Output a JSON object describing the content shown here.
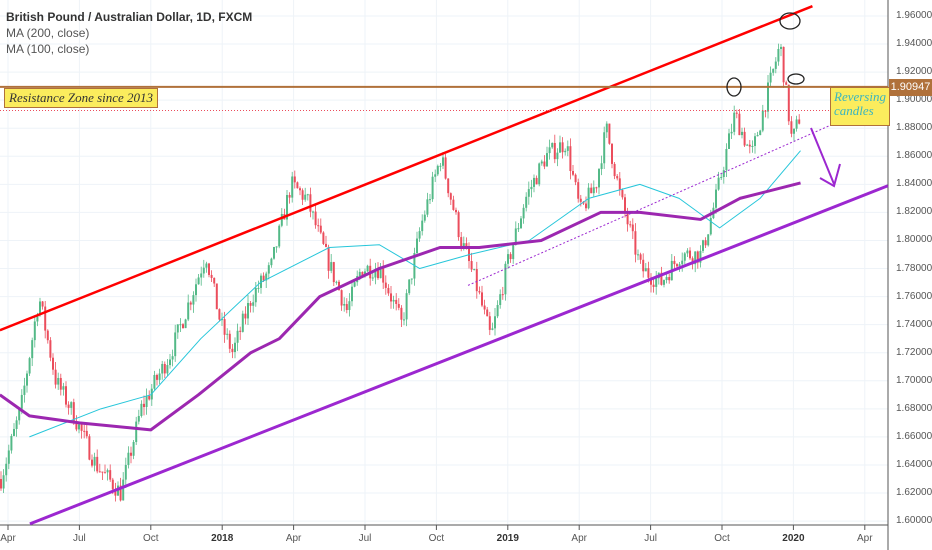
{
  "chart_data": {
    "type": "candlestick",
    "title": "British Pound / Australian Dollar, 1D, FXCM",
    "indicators": [
      "MA (200, close)",
      "MA (100, close)"
    ],
    "ylim": [
      1.6,
      1.96
    ],
    "yticks": [
      "1.96000",
      "1.94000",
      "1.92000",
      "1.90000",
      "1.88000",
      "1.86000",
      "1.84000",
      "1.82000",
      "1.80000",
      "1.78000",
      "1.76000",
      "1.74000",
      "1.72000",
      "1.70000",
      "1.68000",
      "1.66000",
      "1.64000",
      "1.62000",
      "1.60000"
    ],
    "xticks": [
      {
        "label": "Apr",
        "m": 0
      },
      {
        "label": "Jul",
        "m": 3
      },
      {
        "label": "Oct",
        "m": 6
      },
      {
        "label": "2018",
        "m": 9,
        "bold": true
      },
      {
        "label": "Apr",
        "m": 12
      },
      {
        "label": "Jul",
        "m": 15
      },
      {
        "label": "Oct",
        "m": 18
      },
      {
        "label": "2019",
        "m": 21,
        "bold": true
      },
      {
        "label": "Apr",
        "m": 24
      },
      {
        "label": "Jul",
        "m": 27
      },
      {
        "label": "Oct",
        "m": 30
      },
      {
        "label": "2020",
        "m": 33,
        "bold": true
      },
      {
        "label": "Apr",
        "m": 36
      }
    ],
    "price_path_months_from_apr2017": [
      [
        -0.34,
        1.63
      ],
      [
        0.5,
        1.68
      ],
      [
        1.26,
        1.76
      ],
      [
        1.97,
        1.7
      ],
      [
        2.6,
        1.68
      ],
      [
        3.66,
        1.64
      ],
      [
        4.7,
        1.62
      ],
      [
        5.55,
        1.68
      ],
      [
        6.8,
        1.72
      ],
      [
        7.65,
        1.76
      ],
      [
        8.28,
        1.79
      ],
      [
        8.9,
        1.74
      ],
      [
        9.4,
        1.72
      ],
      [
        10.2,
        1.76
      ],
      [
        11,
        1.78
      ],
      [
        11.85,
        1.84
      ],
      [
        12.5,
        1.83
      ],
      [
        13.3,
        1.79
      ],
      [
        14.2,
        1.75
      ],
      [
        14.8,
        1.78
      ],
      [
        15.6,
        1.78
      ],
      [
        16.5,
        1.74
      ],
      [
        17.3,
        1.81
      ],
      [
        18.15,
        1.86
      ],
      [
        19,
        1.8
      ],
      [
        19.6,
        1.77
      ],
      [
        20.25,
        1.73
      ],
      [
        20.9,
        1.78
      ],
      [
        21.7,
        1.83
      ],
      [
        22.56,
        1.86
      ],
      [
        23.4,
        1.87
      ],
      [
        24,
        1.82
      ],
      [
        24.66,
        1.84
      ],
      [
        25.1,
        1.88
      ],
      [
        25.7,
        1.83
      ],
      [
        26.55,
        1.78
      ],
      [
        27.4,
        1.77
      ],
      [
        28.2,
        1.79
      ],
      [
        29.1,
        1.79
      ],
      [
        29.7,
        1.83
      ],
      [
        30.5,
        1.89
      ],
      [
        31.2,
        1.86
      ],
      [
        31.8,
        1.9
      ],
      [
        32.4,
        1.94
      ],
      [
        32.9,
        1.87
      ],
      [
        33.3,
        1.893
      ]
    ],
    "ma200": [
      [
        -0.34,
        1.69
      ],
      [
        0.9,
        1.675
      ],
      [
        3,
        1.67
      ],
      [
        6,
        1.665
      ],
      [
        8,
        1.69
      ],
      [
        10.2,
        1.72
      ],
      [
        11.4,
        1.73
      ],
      [
        13.1,
        1.76
      ],
      [
        15.6,
        1.78
      ],
      [
        18.15,
        1.795
      ],
      [
        19.8,
        1.795
      ],
      [
        22.4,
        1.8
      ],
      [
        24.9,
        1.82
      ],
      [
        26.55,
        1.82
      ],
      [
        29.1,
        1.815
      ],
      [
        30.75,
        1.83
      ],
      [
        33.3,
        1.841
      ]
    ],
    "ma100": [
      [
        0.9,
        1.66
      ],
      [
        3.9,
        1.68
      ],
      [
        6,
        1.69
      ],
      [
        8.1,
        1.73
      ],
      [
        10.6,
        1.77
      ],
      [
        13.5,
        1.795
      ],
      [
        15.6,
        1.797
      ],
      [
        17.3,
        1.78
      ],
      [
        19.4,
        1.79
      ],
      [
        21.9,
        1.8
      ],
      [
        24.4,
        1.83
      ],
      [
        26.55,
        1.84
      ],
      [
        28.2,
        1.83
      ],
      [
        29.9,
        1.809
      ],
      [
        31.6,
        1.83
      ],
      [
        33.3,
        1.864
      ]
    ],
    "last_price": "1.90947",
    "resistance_level": 1.9095,
    "current_close_level": 1.8926,
    "channel_upper": [
      [
        -0.34,
        1.736
      ],
      [
        33.8,
        1.967
      ]
    ],
    "channel_lower": [
      [
        0.92,
        1.598
      ],
      [
        36.97,
        1.839
      ]
    ],
    "inner_trend": [
      [
        19.33,
        1.768
      ],
      [
        34.54,
        1.882
      ]
    ],
    "annotations": [
      "Resistance Zone since 2013",
      "Reversing candles"
    ],
    "colors": {
      "up": "#53b987",
      "down": "#eb4d5c",
      "ma200": "#9c27b0",
      "ma100": "#26c6da",
      "upper": "#ff0000",
      "lower": "#9c27d0",
      "resistance": "#b0713a"
    }
  }
}
